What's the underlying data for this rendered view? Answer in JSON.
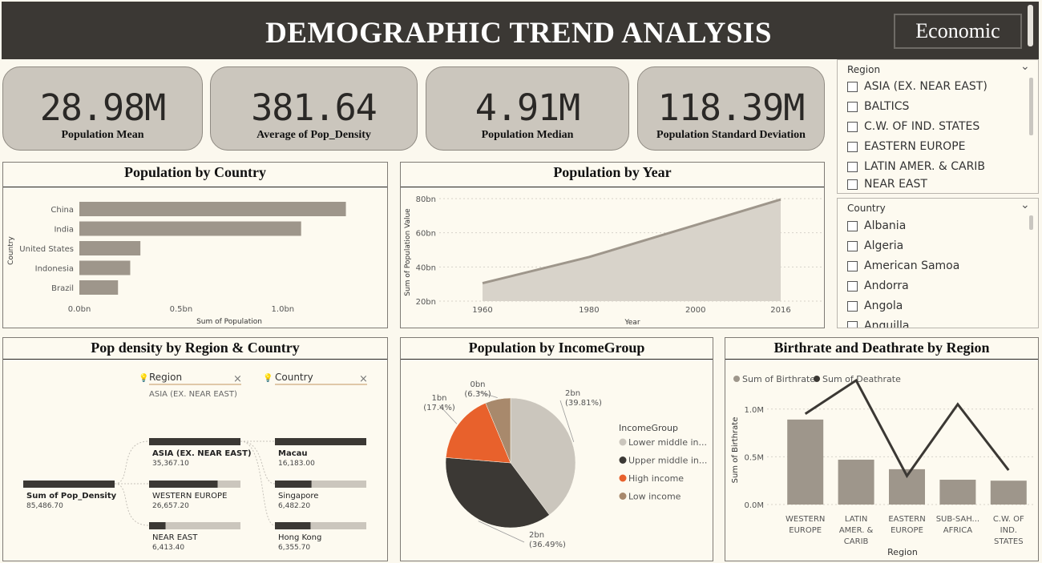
{
  "header": {
    "title": "DEMOGRAPHIC TREND ANALYSIS",
    "button_label": "Economic"
  },
  "kpis": [
    {
      "value": "28.98M",
      "label": "Population Mean"
    },
    {
      "value": "381.64",
      "label": "Average of Pop_Density"
    },
    {
      "value": "4.91M",
      "label": "Population Median"
    },
    {
      "value": "118.39M",
      "label": "Population Standard Deviation"
    }
  ],
  "region_slicer": {
    "label": "Region",
    "items": [
      "ASIA (EX. NEAR EAST)",
      "BALTICS",
      "C.W. OF IND. STATES",
      "EASTERN EUROPE",
      "LATIN AMER. & CARIB",
      "NEAR EAST"
    ]
  },
  "country_slicer": {
    "label": "Country",
    "items": [
      "Albania",
      "Algeria",
      "American Samoa",
      "Andorra",
      "Angola",
      "Anguilla"
    ]
  },
  "panels": {
    "pop_country": "Population by Country",
    "pop_year": "Population by Year",
    "decomp": "Pop density by Region & Country",
    "income": "Population by IncomeGroup",
    "birth_death": "Birthrate and Deathrate by Region"
  },
  "decomp_tree": {
    "root": {
      "label": "Sum of Pop_Density",
      "value": "85,486.70"
    },
    "level1_label": "Region",
    "level1_filter": "ASIA (EX. NEAR EAST)",
    "level2_label": "Country",
    "regions": [
      {
        "label": "ASIA (EX. NEAR EAST)",
        "value": "35,367.10",
        "fraction": 1.0
      },
      {
        "label": "WESTERN EUROPE",
        "value": "26,657.20",
        "fraction": 0.75
      },
      {
        "label": "NEAR EAST",
        "value": "6,413.40",
        "fraction": 0.18
      }
    ],
    "countries": [
      {
        "label": "Macau",
        "value": "16,183.00",
        "fraction": 1.0
      },
      {
        "label": "Singapore",
        "value": "6,482.20",
        "fraction": 0.4
      },
      {
        "label": "Hong Kong",
        "value": "6,355.70",
        "fraction": 0.39
      }
    ]
  },
  "colors": {
    "bar": "#9e968b",
    "area_fill": "#d8d3ca",
    "area_line": "#9e968b",
    "dark": "#3b3834",
    "orange": "#e8612c",
    "tan": "#a8896c",
    "light": "#cbc6bd"
  },
  "chart_data": [
    {
      "type": "bar",
      "orientation": "horizontal",
      "categories": [
        "China",
        "India",
        "United States",
        "Indonesia",
        "Brazil"
      ],
      "values": [
        1.31,
        1.09,
        0.3,
        0.25,
        0.19
      ],
      "xlabel": "Sum of Population",
      "ylabel": "Country",
      "xticks": [
        "0.0bn",
        "0.5bn",
        "1.0bn"
      ],
      "xlim": [
        0,
        1.3
      ]
    },
    {
      "type": "area",
      "x": [
        1960,
        1980,
        2000,
        2016
      ],
      "values": [
        30.5,
        45.8,
        64.5,
        79.5
      ],
      "xlabel": "Year",
      "ylabel": "Sum of Population Value",
      "yticks": [
        "20bn",
        "40bn",
        "60bn",
        "80bn"
      ],
      "ylim": [
        20,
        80
      ],
      "xticks": [
        "1960",
        "1980",
        "2000",
        "2016"
      ]
    },
    {
      "type": "pie",
      "legend_title": "IncomeGroup",
      "slices": [
        {
          "name": "Lower middle in...",
          "value": 39.81,
          "label": "2bn",
          "pct": "(39.81%)"
        },
        {
          "name": "Upper middle in...",
          "value": 36.49,
          "label": "2bn",
          "pct": "(36.49%)"
        },
        {
          "name": "High income",
          "value": 17.4,
          "label": "1bn",
          "pct": "(17.4%)"
        },
        {
          "name": "Low income",
          "value": 6.3,
          "label": "0bn",
          "pct": "(6.3%)"
        }
      ]
    },
    {
      "type": "bar",
      "categories": [
        "WESTERN EUROPE",
        "LATIN AMER. & CARIB",
        "EASTERN EUROPE",
        "SUB-SAH... AFRICA",
        "C.W. OF IND. STATES"
      ],
      "category_lines": [
        [
          "WESTERN",
          "EUROPE"
        ],
        [
          "LATIN",
          "AMER. &",
          "CARIB"
        ],
        [
          "EASTERN",
          "EUROPE"
        ],
        [
          "SUB-SAH...",
          "AFRICA"
        ],
        [
          "C.W. OF",
          "IND.",
          "STATES"
        ]
      ],
      "series": [
        {
          "name": "Sum of Birthrate",
          "type": "bar",
          "values": [
            0.89,
            0.47,
            0.37,
            0.26,
            0.25
          ]
        },
        {
          "name": "Sum of Deathrate",
          "type": "line",
          "values": [
            0.95,
            1.3,
            0.3,
            1.05,
            0.36
          ]
        }
      ],
      "xlabel": "Region",
      "ylabel": "Sum of Birthrate",
      "yticks": [
        "0.0M",
        "0.5M",
        "1.0M"
      ],
      "ylim": [
        0,
        1.3
      ]
    }
  ]
}
